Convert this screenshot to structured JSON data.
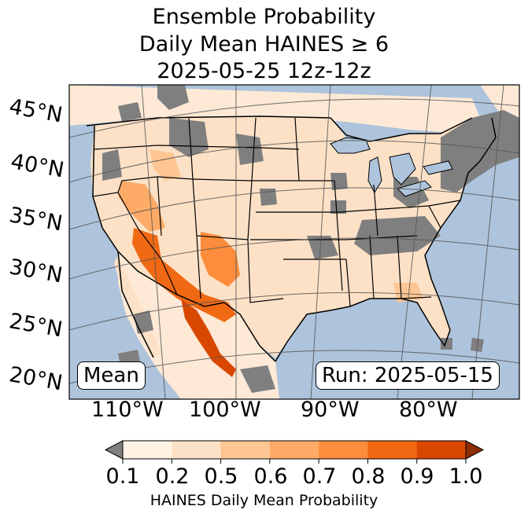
{
  "title": {
    "line1": "Ensemble Probability",
    "line2": "Daily Mean HAINES ≥ 6",
    "line3": "2025-05-25 12z-12z"
  },
  "map": {
    "region": "Continental United States",
    "land_color": "#ffffff",
    "ocean_color": "#aec4dc",
    "missing_color": "#7f7f7f",
    "latitude_labels": [
      "45°N",
      "40°N",
      "35°N",
      "30°N",
      "25°N",
      "20°N"
    ],
    "longitude_labels": [
      "110°W",
      "100°W",
      "90°W",
      "80°W"
    ],
    "stat_label": "Mean",
    "run_label": "Run: 2025-05-15"
  },
  "colorbar": {
    "title": "HAINES Daily Mean Probability",
    "tick_labels": [
      "0.1",
      "0.2",
      "0.5",
      "0.6",
      "0.7",
      "0.8",
      "0.9",
      "1.0"
    ],
    "colors": [
      "#fff3e6",
      "#fde1c6",
      "#fdc692",
      "#fdab67",
      "#fd8d3c",
      "#f16913",
      "#d94801"
    ],
    "under_color": "#7f7f7f",
    "over_color": "#8c2d04"
  }
}
